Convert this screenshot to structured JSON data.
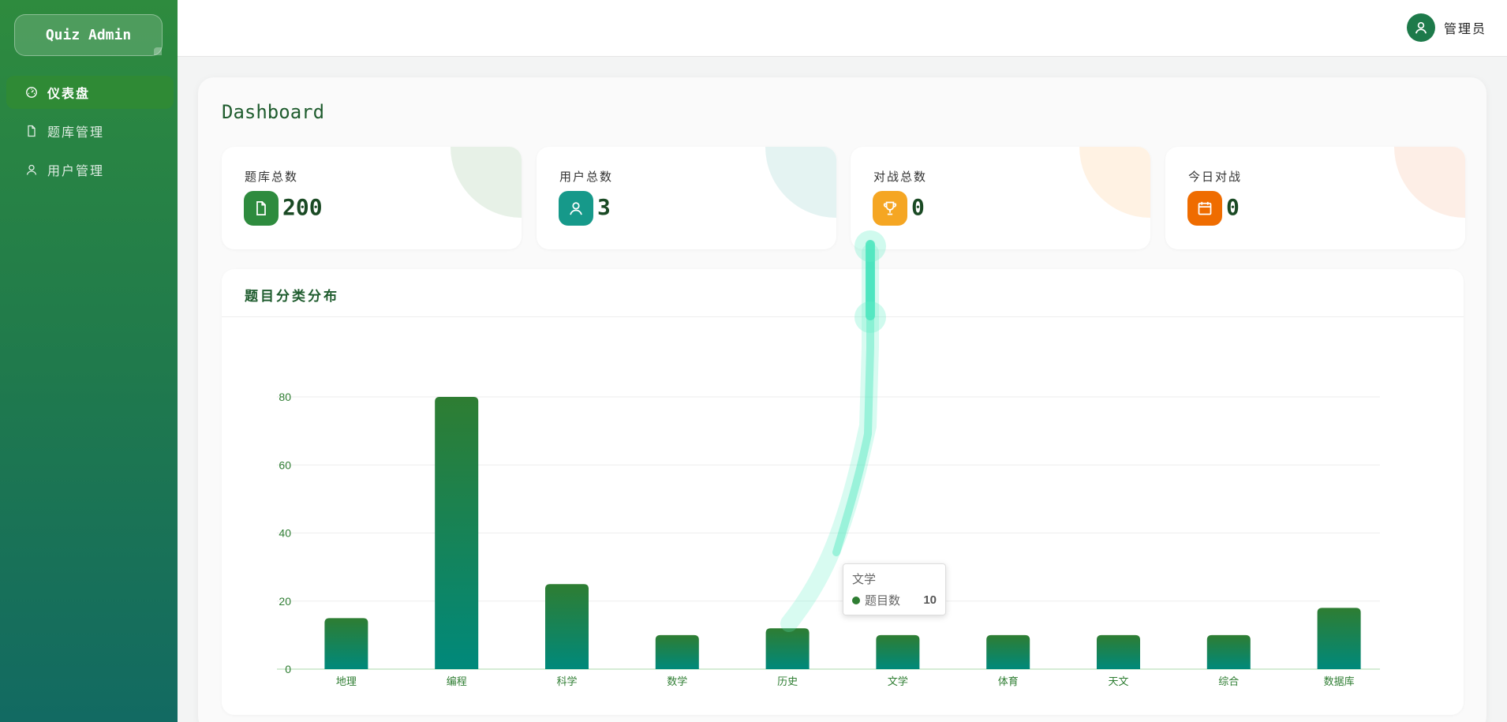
{
  "app": {
    "logo": "Quiz Admin",
    "user_name": "管理员"
  },
  "sidebar": {
    "items": [
      {
        "label": "仪表盘",
        "icon": "gauge-icon",
        "active": true
      },
      {
        "label": "题库管理",
        "icon": "document-icon",
        "active": false
      },
      {
        "label": "用户管理",
        "icon": "user-icon",
        "active": false
      }
    ]
  },
  "page": {
    "title": "Dashboard"
  },
  "stats": [
    {
      "label": "题库总数",
      "value": "200",
      "icon": "document-icon",
      "color": "#2e8b3e"
    },
    {
      "label": "用户总数",
      "value": "3",
      "icon": "user-icon",
      "color": "#16998a"
    },
    {
      "label": "对战总数",
      "value": "0",
      "icon": "trophy-icon",
      "color": "#f5a623"
    },
    {
      "label": "今日对战",
      "value": "0",
      "icon": "calendar-icon",
      "color": "#ef6c00"
    }
  ],
  "chart": {
    "title": "题目分类分布"
  },
  "chart_data": {
    "type": "bar",
    "categories": [
      "地理",
      "编程",
      "科学",
      "数学",
      "历史",
      "文学",
      "体育",
      "天文",
      "综合",
      "数据库"
    ],
    "series": [
      {
        "name": "题目数",
        "values": [
          15,
          80,
          25,
          10,
          12,
          10,
          10,
          10,
          10,
          18
        ]
      }
    ],
    "yticks": [
      0,
      20,
      40,
      60,
      80
    ],
    "ylim": [
      0,
      80
    ],
    "grid": true,
    "colors": {
      "bar_top": "#2e7d32",
      "bar_bottom": "#00897b"
    }
  },
  "tooltip": {
    "category": "文学",
    "series_name": "题目数",
    "value": "10"
  }
}
